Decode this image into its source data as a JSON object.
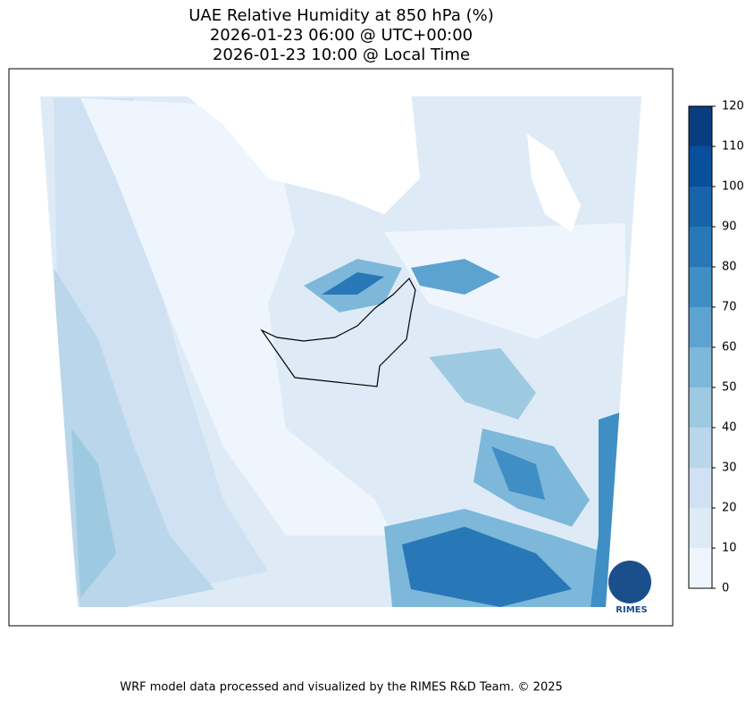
{
  "title": [
    "UAE Relative Humidity at 850 hPa (%)",
    "2026-01-23 06:00 @ UTC+00:00",
    "2026-01-23 10:00 @ Local Time"
  ],
  "colorbar": {
    "ticks": [
      0,
      10,
      20,
      30,
      40,
      50,
      60,
      70,
      80,
      90,
      100,
      110,
      120
    ],
    "colors": [
      "#eef5fc",
      "#deebf7",
      "#cfe1f2",
      "#b9d6ea",
      "#9ecae1",
      "#7db8da",
      "#5da3d0",
      "#3f8fc5",
      "#2878b8",
      "#1764ab",
      "#08509b",
      "#0a3d80"
    ]
  },
  "logo": "RIMES",
  "footer": "WRF model data processed and visualized by the RIMES R&D Team. © 2025"
}
